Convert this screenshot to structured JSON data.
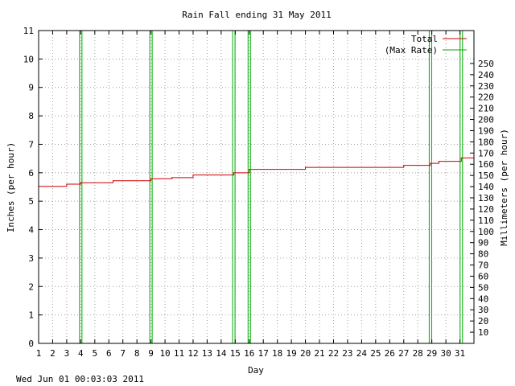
{
  "footer_timestamp": "Wed Jun 01 00:03:03 2011",
  "chart_data": {
    "type": "line",
    "title": "Rain Fall ending 31 May 2011",
    "xlabel": "Day",
    "ylabel": "Inches (per hour)",
    "y2label": "Millimeters (per hour)",
    "xlim": [
      1,
      32
    ],
    "ylim": [
      0,
      11
    ],
    "y2lim": [
      0,
      279.4
    ],
    "x_ticks": [
      1,
      2,
      3,
      4,
      5,
      6,
      7,
      8,
      9,
      10,
      11,
      12,
      13,
      14,
      15,
      16,
      17,
      18,
      19,
      20,
      21,
      22,
      23,
      24,
      25,
      26,
      27,
      28,
      29,
      30,
      31
    ],
    "y_ticks": [
      0,
      1,
      2,
      3,
      4,
      5,
      6,
      7,
      8,
      9,
      10,
      11
    ],
    "y2_ticks": [
      10,
      20,
      30,
      40,
      50,
      60,
      70,
      80,
      90,
      100,
      110,
      120,
      130,
      140,
      150,
      160,
      170,
      180,
      190,
      200,
      210,
      220,
      230,
      240,
      250
    ],
    "grid": true,
    "legend_position": "top-right",
    "colors": {
      "total": "#cc0000",
      "max_rate": "#00aa00"
    },
    "series": [
      {
        "name": "Total",
        "step": true,
        "points": [
          [
            1,
            5.52
          ],
          [
            3,
            5.6
          ],
          [
            4,
            5.65
          ],
          [
            6.3,
            5.72
          ],
          [
            9,
            5.79
          ],
          [
            10.5,
            5.83
          ],
          [
            12,
            5.92
          ],
          [
            14.9,
            6.0
          ],
          [
            16,
            6.12
          ],
          [
            20,
            6.19
          ],
          [
            27,
            6.26
          ],
          [
            28.9,
            6.33
          ],
          [
            29.5,
            6.4
          ],
          [
            31.1,
            6.52
          ],
          [
            32,
            6.52
          ]
        ]
      },
      {
        "name": "(Max Rate)",
        "spikes": [
          {
            "x": 4.0,
            "y": 11
          },
          {
            "x": 9.0,
            "y": 11
          },
          {
            "x": 14.9,
            "y": 11
          },
          {
            "x": 16.0,
            "y": 11
          },
          {
            "x": 28.9,
            "y": 11
          },
          {
            "x": 31.1,
            "y": 11
          }
        ]
      }
    ]
  }
}
